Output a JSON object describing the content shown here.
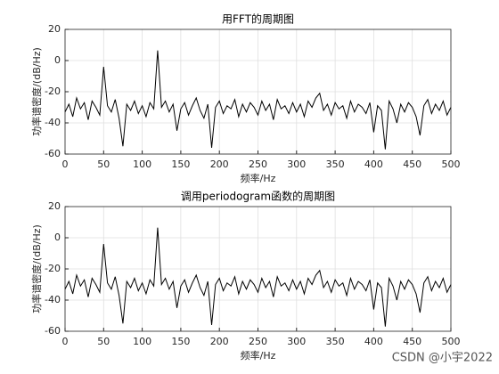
{
  "chart_data": [
    {
      "type": "line",
      "title": "用FFT的周期图",
      "xlabel": "频率/Hz",
      "ylabel": "功率谱密度/(dB/Hz)",
      "grid": true,
      "xlim": [
        0,
        500
      ],
      "xticks": [
        0,
        50,
        100,
        150,
        200,
        250,
        300,
        350,
        400,
        450,
        500
      ],
      "ylim": [
        -60,
        20
      ],
      "yticks": [
        -60,
        -40,
        -20,
        0,
        20
      ],
      "x": [
        0,
        5,
        10,
        15,
        20,
        25,
        30,
        35,
        40,
        45,
        50,
        55,
        60,
        65,
        70,
        75,
        80,
        85,
        90,
        95,
        100,
        105,
        110,
        115,
        120,
        125,
        130,
        135,
        140,
        145,
        150,
        155,
        160,
        165,
        170,
        175,
        180,
        185,
        190,
        195,
        200,
        205,
        210,
        215,
        220,
        225,
        230,
        235,
        240,
        245,
        250,
        255,
        260,
        265,
        270,
        275,
        280,
        285,
        290,
        295,
        300,
        305,
        310,
        315,
        320,
        325,
        330,
        335,
        340,
        345,
        350,
        355,
        360,
        365,
        370,
        375,
        380,
        385,
        390,
        395,
        400,
        405,
        410,
        415,
        420,
        425,
        430,
        435,
        440,
        445,
        450,
        455,
        460,
        465,
        470,
        475,
        480,
        485,
        490,
        495,
        500
      ],
      "series": [
        {
          "color": "#000000",
          "values": [
            -33,
            -28,
            -36,
            -24,
            -31,
            -27,
            -38,
            -26,
            -30,
            -35,
            -4,
            -29,
            -33,
            -25,
            -37,
            -55,
            -28,
            -32,
            -26,
            -34,
            -29,
            -36,
            -27,
            -31,
            6.5,
            -30,
            -26,
            -33,
            -28,
            -45,
            -31,
            -27,
            -35,
            -29,
            -24,
            -32,
            -37,
            -28,
            -56,
            -30,
            -26,
            -34,
            -29,
            -31,
            -25,
            -36,
            -28,
            -33,
            -27,
            -30,
            -35,
            -26,
            -32,
            -28,
            -38,
            -25,
            -31,
            -29,
            -34,
            -27,
            -33,
            -28,
            -36,
            -26,
            -30,
            -24,
            -21,
            -32,
            -28,
            -35,
            -27,
            -31,
            -29,
            -37,
            -26,
            -33,
            -28,
            -30,
            -34,
            -27,
            -46,
            -29,
            -32,
            -57,
            -26,
            -31,
            -40,
            -28,
            -33,
            -27,
            -30,
            -36,
            -48,
            -29,
            -25,
            -34,
            -28,
            -32,
            -26,
            -35,
            -30
          ]
        }
      ]
    },
    {
      "type": "line",
      "title": "调用periodogram函数的周期图",
      "xlabel": "频率/Hz",
      "ylabel": "功率谱密度/(dB/Hz)",
      "grid": true,
      "xlim": [
        0,
        500
      ],
      "xticks": [
        0,
        50,
        100,
        150,
        200,
        250,
        300,
        350,
        400,
        450,
        500
      ],
      "ylim": [
        -60,
        20
      ],
      "yticks": [
        -60,
        -40,
        -20,
        0,
        20
      ],
      "x": [
        0,
        5,
        10,
        15,
        20,
        25,
        30,
        35,
        40,
        45,
        50,
        55,
        60,
        65,
        70,
        75,
        80,
        85,
        90,
        95,
        100,
        105,
        110,
        115,
        120,
        125,
        130,
        135,
        140,
        145,
        150,
        155,
        160,
        165,
        170,
        175,
        180,
        185,
        190,
        195,
        200,
        205,
        210,
        215,
        220,
        225,
        230,
        235,
        240,
        245,
        250,
        255,
        260,
        265,
        270,
        275,
        280,
        285,
        290,
        295,
        300,
        305,
        310,
        315,
        320,
        325,
        330,
        335,
        340,
        345,
        350,
        355,
        360,
        365,
        370,
        375,
        380,
        385,
        390,
        395,
        400,
        405,
        410,
        415,
        420,
        425,
        430,
        435,
        440,
        445,
        450,
        455,
        460,
        465,
        470,
        475,
        480,
        485,
        490,
        495,
        500
      ],
      "series": [
        {
          "color": "#000000",
          "values": [
            -33,
            -28,
            -36,
            -24,
            -31,
            -27,
            -38,
            -26,
            -30,
            -35,
            -4,
            -29,
            -33,
            -25,
            -37,
            -55,
            -28,
            -32,
            -26,
            -34,
            -29,
            -36,
            -27,
            -31,
            6.5,
            -30,
            -26,
            -33,
            -28,
            -45,
            -31,
            -27,
            -35,
            -29,
            -24,
            -32,
            -37,
            -28,
            -56,
            -30,
            -26,
            -34,
            -29,
            -31,
            -25,
            -36,
            -28,
            -33,
            -27,
            -30,
            -35,
            -26,
            -32,
            -28,
            -38,
            -25,
            -31,
            -29,
            -34,
            -27,
            -33,
            -28,
            -36,
            -26,
            -30,
            -24,
            -21,
            -32,
            -28,
            -35,
            -27,
            -31,
            -29,
            -37,
            -26,
            -33,
            -28,
            -30,
            -34,
            -27,
            -46,
            -29,
            -32,
            -57,
            -26,
            -31,
            -40,
            -28,
            -33,
            -27,
            -30,
            -36,
            -48,
            -29,
            -25,
            -34,
            -28,
            -32,
            -26,
            -35,
            -30
          ]
        }
      ]
    }
  ],
  "watermark": "CSDN @小宇2022"
}
